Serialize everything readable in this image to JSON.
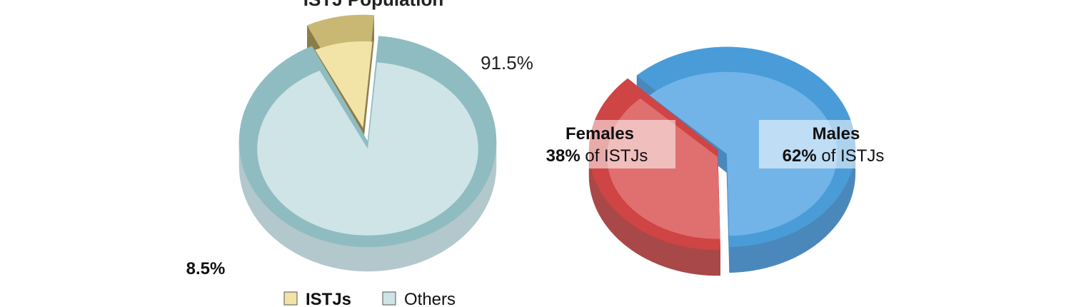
{
  "chart_data": [
    {
      "type": "pie",
      "title": "ISTJ Population",
      "categories": [
        "ISTJs",
        "Others"
      ],
      "values": [
        8.5,
        91.5
      ],
      "labels": [
        "8.5%",
        "91.5%"
      ],
      "colors": [
        "#f2e3a6",
        "#cfe4e7"
      ],
      "side_colors": [
        "#8a7d48",
        "#b3c8cc"
      ],
      "rim_colors": [
        "#c9b874",
        "#8fbcc0"
      ],
      "exploded": "ISTJs",
      "legend": {
        "position": "bottom",
        "items": [
          {
            "label": "ISTJs",
            "color": "#f2e3a6"
          },
          {
            "label": "Others",
            "color": "#cfe4e7"
          }
        ]
      }
    },
    {
      "type": "pie",
      "title": "",
      "categories": [
        "Females",
        "Males"
      ],
      "values": [
        38,
        62
      ],
      "label_names": [
        "Females",
        "Males"
      ],
      "label_pcts": [
        "38%",
        "62%"
      ],
      "label_suffix": "of ISTJs",
      "colors": [
        "#e07070",
        "#72b4e8"
      ],
      "side_colors": [
        "#a94848",
        "#4a88bc"
      ],
      "rim_colors": [
        "#cf4444",
        "#4a9cd8"
      ],
      "exploded": "Males"
    }
  ]
}
